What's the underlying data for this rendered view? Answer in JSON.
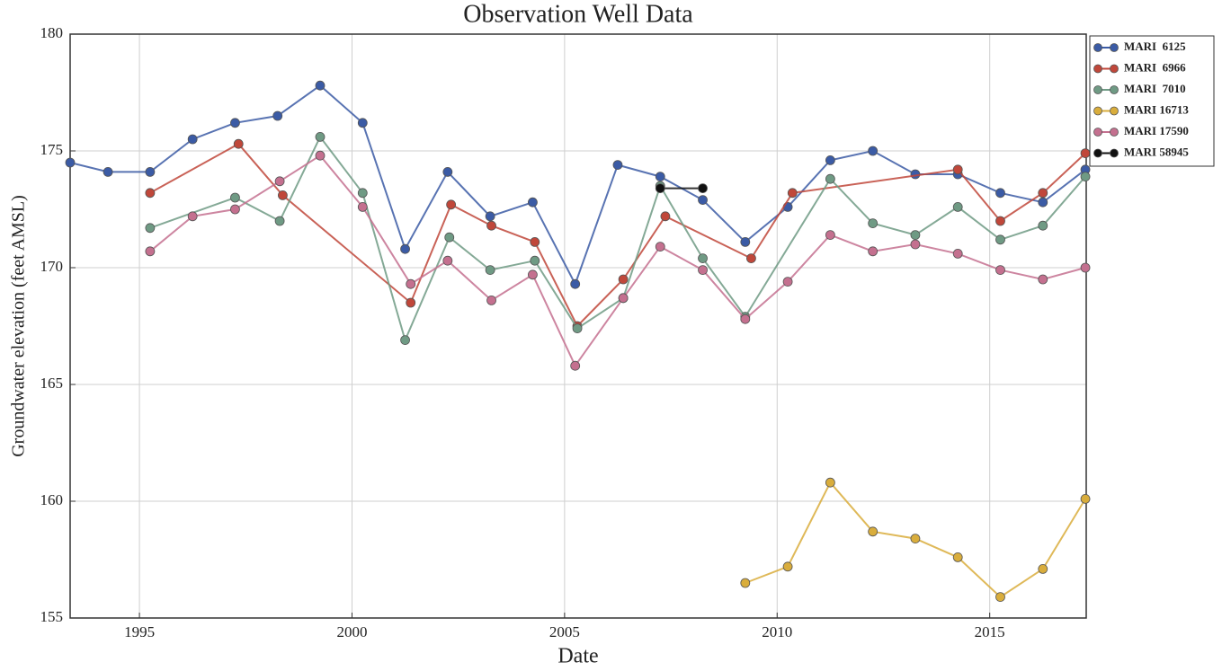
{
  "chart_data": {
    "type": "line",
    "title": "Observation Well Data",
    "x_label": "Date",
    "y_label": "Groundwater elevation (feet AMSL)",
    "xlim": [
      1993.37,
      2017.27
    ],
    "xticks": [
      1995,
      2000,
      2005,
      2010,
      2015
    ],
    "ylim": [
      155,
      180
    ],
    "yticks": [
      155,
      160,
      165,
      170,
      175,
      180
    ],
    "grid": true,
    "legend": "outside-upper-right",
    "series": [
      {
        "name": "MARI  6125",
        "color": "#3b5ba5",
        "x": [
          1993.37,
          1994.26,
          1995.25,
          1996.25,
          1997.25,
          1998.25,
          1999.25,
          2000.25,
          2001.25,
          2002.25,
          2003.25,
          2004.25,
          2005.25,
          2006.25,
          2007.25,
          2008.25,
          2009.25,
          2010.25,
          2011.25,
          2012.25,
          2013.25,
          2014.25,
          2015.25,
          2016.25,
          2017.25
        ],
        "values": [
          174.5,
          174.1,
          174.1,
          175.5,
          176.2,
          176.5,
          177.8,
          176.2,
          170.8,
          174.1,
          172.2,
          172.8,
          169.3,
          174.4,
          173.9,
          172.9,
          171.1,
          172.6,
          174.6,
          175.0,
          174.0,
          174.0,
          173.2,
          172.8,
          174.2
        ]
      },
      {
        "name": "MARI  6966",
        "color": "#c0473a",
        "x": [
          1995.25,
          1997.33,
          1998.37,
          2001.38,
          2002.33,
          2003.28,
          2004.3,
          2005.3,
          2006.38,
          2007.37,
          2009.39,
          2010.36,
          2014.25,
          2015.25,
          2016.25,
          2017.25
        ],
        "values": [
          173.2,
          175.3,
          173.1,
          168.5,
          172.7,
          171.8,
          171.1,
          167.5,
          169.5,
          172.2,
          170.4,
          173.2,
          174.2,
          172.0,
          173.2,
          174.9
        ]
      },
      {
        "name": "MARI  7010",
        "color": "#6f9a84",
        "x": [
          1995.25,
          1997.25,
          1998.3,
          1999.25,
          2000.25,
          2001.25,
          2002.29,
          2003.25,
          2004.3,
          2005.3,
          2006.38,
          2007.25,
          2008.25,
          2009.25,
          2011.25,
          2012.25,
          2013.25,
          2014.25,
          2015.25,
          2016.25,
          2017.25
        ],
        "values": [
          171.7,
          173.0,
          172.0,
          175.6,
          173.2,
          166.9,
          171.3,
          169.9,
          170.3,
          167.4,
          168.7,
          173.5,
          170.4,
          167.9,
          173.8,
          171.9,
          171.4,
          172.6,
          171.2,
          171.8,
          173.9
        ]
      },
      {
        "name": "MARI 16713",
        "color": "#d9ad3c",
        "x": [
          2009.25,
          2010.25,
          2011.25,
          2012.25,
          2013.25,
          2014.25,
          2015.25,
          2016.25,
          2017.25
        ],
        "values": [
          156.5,
          157.2,
          160.8,
          158.7,
          158.4,
          157.6,
          155.9,
          157.1,
          160.1
        ]
      },
      {
        "name": "MARI 17590",
        "color": "#c4708f",
        "x": [
          1995.25,
          1996.25,
          1997.25,
          1998.3,
          1999.25,
          2000.25,
          2001.38,
          2002.25,
          2003.28,
          2004.25,
          2005.25,
          2006.38,
          2007.25,
          2008.25,
          2009.25,
          2010.25,
          2011.25,
          2012.25,
          2013.25,
          2014.25,
          2015.25,
          2016.25,
          2017.25
        ],
        "values": [
          170.7,
          172.2,
          172.5,
          173.7,
          174.8,
          172.6,
          169.3,
          170.3,
          168.6,
          169.7,
          165.8,
          168.7,
          170.9,
          169.9,
          167.8,
          169.4,
          171.4,
          170.7,
          171.0,
          170.6,
          169.9,
          169.5,
          170.0
        ]
      },
      {
        "name": "MARI 58945",
        "color": "#111111",
        "x": [
          2007.25,
          2008.25
        ],
        "values": [
          173.4,
          173.4
        ]
      }
    ]
  }
}
